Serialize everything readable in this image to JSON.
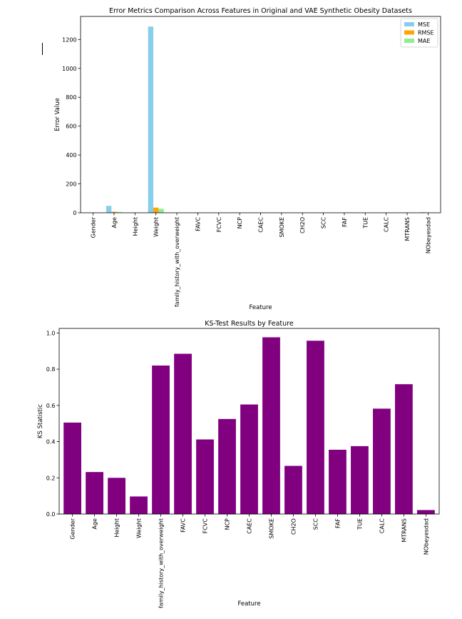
{
  "chart_data": [
    {
      "type": "bar",
      "title": "Error Metrics Comparison Across Features in Original and VAE Synthetic Obesity Datasets",
      "xlabel": "Feature",
      "ylabel": "Error Value",
      "ylim": [
        0,
        1360
      ],
      "yticks": [
        0,
        200,
        400,
        600,
        800,
        1000,
        1200
      ],
      "grid": false,
      "legend_position": "top-right",
      "categories": [
        "Gender",
        "Age",
        "Height",
        "Weight",
        "family_history_with_overweight",
        "FAVC",
        "FCVC",
        "NCP",
        "CAEC",
        "SMOKE",
        "CH2O",
        "SCC",
        "FAF",
        "TUE",
        "CALC",
        "MTRANS",
        "NObeyesdad"
      ],
      "series": [
        {
          "name": "MSE",
          "color": "#87ceeb",
          "values": [
            0.3,
            48,
            0.01,
            1290,
            0.2,
            0.15,
            0.3,
            0.7,
            0.3,
            0.05,
            0.4,
            0.05,
            0.7,
            0.4,
            0.3,
            1.5,
            4
          ]
        },
        {
          "name": "RMSE",
          "color": "#ffa500",
          "values": [
            0.5,
            6.9,
            0.1,
            35.9,
            0.45,
            0.4,
            0.55,
            0.8,
            0.55,
            0.2,
            0.6,
            0.2,
            0.85,
            0.6,
            0.5,
            1.2,
            2
          ]
        },
        {
          "name": "MAE",
          "color": "#90ee90",
          "values": [
            0.3,
            4.5,
            0.08,
            28,
            0.3,
            0.2,
            0.4,
            0.6,
            0.4,
            0.1,
            0.5,
            0.1,
            0.7,
            0.5,
            0.35,
            0.9,
            1.5
          ]
        }
      ]
    },
    {
      "type": "bar",
      "title": "KS-Test Results by Feature",
      "xlabel": "Feature",
      "ylabel": "KS Statistic",
      "ylim": [
        0,
        1.025
      ],
      "yticks": [
        0.0,
        0.2,
        0.4,
        0.6,
        0.8,
        1.0
      ],
      "grid": false,
      "categories": [
        "Gender",
        "Age",
        "Height",
        "Weight",
        "family_history_with_overweight",
        "FAVC",
        "FCVC",
        "NCP",
        "CAEC",
        "SMOKE",
        "CH2O",
        "SCC",
        "FAF",
        "TUE",
        "CALC",
        "MTRANS",
        "NObeyesdad"
      ],
      "series": [
        {
          "color": "#800080",
          "values": [
            0.505,
            0.232,
            0.2,
            0.097,
            0.82,
            0.885,
            0.412,
            0.525,
            0.605,
            0.976,
            0.266,
            0.957,
            0.355,
            0.375,
            0.582,
            0.717,
            0.022
          ]
        }
      ]
    }
  ]
}
